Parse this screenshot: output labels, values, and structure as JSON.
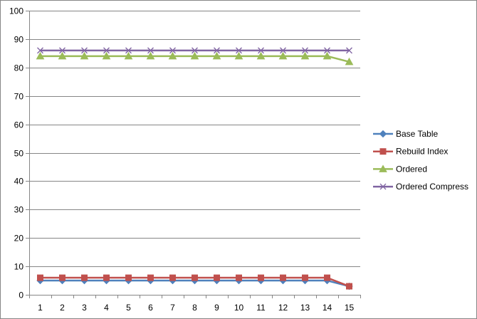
{
  "chart_data": {
    "type": "line",
    "x": [
      1,
      2,
      3,
      4,
      5,
      6,
      7,
      8,
      9,
      10,
      11,
      12,
      13,
      14,
      15
    ],
    "ylim": [
      0,
      100
    ],
    "yticks": [
      0,
      10,
      20,
      30,
      40,
      50,
      60,
      70,
      80,
      90,
      100
    ],
    "grid": true,
    "legend_position": "right",
    "series": [
      {
        "name": "Base Table",
        "color": "#4F81BD",
        "marker": "diamond",
        "values": [
          5,
          5,
          5,
          5,
          5,
          5,
          5,
          5,
          5,
          5,
          5,
          5,
          5,
          5,
          3
        ]
      },
      {
        "name": "Rebuild Index",
        "color": "#C0504D",
        "marker": "square",
        "values": [
          6,
          6,
          6,
          6,
          6,
          6,
          6,
          6,
          6,
          6,
          6,
          6,
          6,
          6,
          3
        ]
      },
      {
        "name": "Ordered",
        "color": "#9BBB59",
        "marker": "triangle",
        "values": [
          84,
          84,
          84,
          84,
          84,
          84,
          84,
          84,
          84,
          84,
          84,
          84,
          84,
          84,
          82
        ]
      },
      {
        "name": "Ordered Compress",
        "color": "#8064A2",
        "marker": "x",
        "values": [
          86,
          86,
          86,
          86,
          86,
          86,
          86,
          86,
          86,
          86,
          86,
          86,
          86,
          86,
          86
        ]
      }
    ]
  }
}
